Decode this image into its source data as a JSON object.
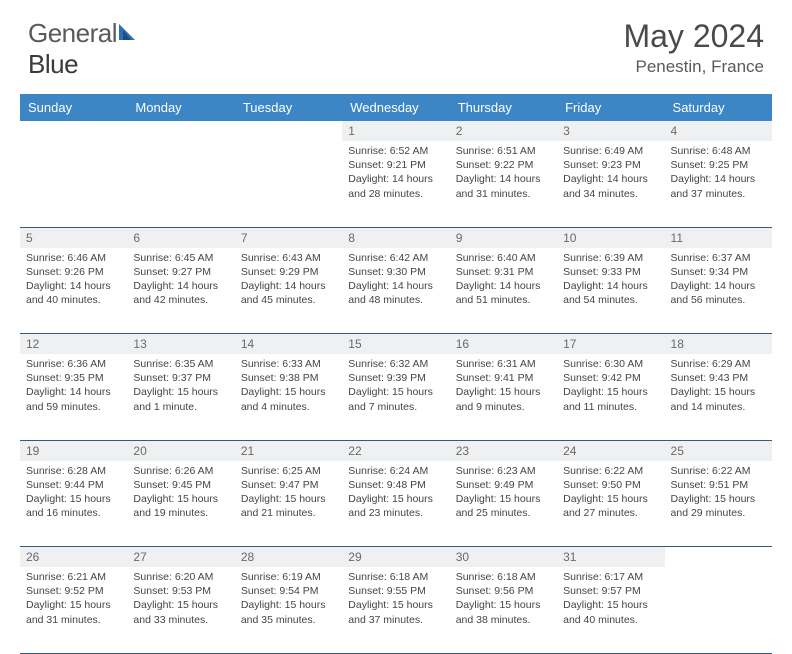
{
  "brand": {
    "part1": "General",
    "part2": "Blue"
  },
  "title": "May 2024",
  "location": "Penestin, France",
  "colors": {
    "header_bg": "#3d86c6",
    "header_text": "#ffffff",
    "daynum_bg": "#eef0f2",
    "daynum_text": "#6a6a6a",
    "row_divider": "#2f5a89",
    "body_text": "#454545",
    "title_text": "#4a4a4a",
    "logo_gray": "#5a5a5a",
    "logo_blue": "#2b6fb0"
  },
  "day_names": [
    "Sunday",
    "Monday",
    "Tuesday",
    "Wednesday",
    "Thursday",
    "Friday",
    "Saturday"
  ],
  "weeks": [
    [
      null,
      null,
      null,
      {
        "n": "1",
        "sr": "6:52 AM",
        "ss": "9:21 PM",
        "dl": "14 hours and 28 minutes."
      },
      {
        "n": "2",
        "sr": "6:51 AM",
        "ss": "9:22 PM",
        "dl": "14 hours and 31 minutes."
      },
      {
        "n": "3",
        "sr": "6:49 AM",
        "ss": "9:23 PM",
        "dl": "14 hours and 34 minutes."
      },
      {
        "n": "4",
        "sr": "6:48 AM",
        "ss": "9:25 PM",
        "dl": "14 hours and 37 minutes."
      }
    ],
    [
      {
        "n": "5",
        "sr": "6:46 AM",
        "ss": "9:26 PM",
        "dl": "14 hours and 40 minutes."
      },
      {
        "n": "6",
        "sr": "6:45 AM",
        "ss": "9:27 PM",
        "dl": "14 hours and 42 minutes."
      },
      {
        "n": "7",
        "sr": "6:43 AM",
        "ss": "9:29 PM",
        "dl": "14 hours and 45 minutes."
      },
      {
        "n": "8",
        "sr": "6:42 AM",
        "ss": "9:30 PM",
        "dl": "14 hours and 48 minutes."
      },
      {
        "n": "9",
        "sr": "6:40 AM",
        "ss": "9:31 PM",
        "dl": "14 hours and 51 minutes."
      },
      {
        "n": "10",
        "sr": "6:39 AM",
        "ss": "9:33 PM",
        "dl": "14 hours and 54 minutes."
      },
      {
        "n": "11",
        "sr": "6:37 AM",
        "ss": "9:34 PM",
        "dl": "14 hours and 56 minutes."
      }
    ],
    [
      {
        "n": "12",
        "sr": "6:36 AM",
        "ss": "9:35 PM",
        "dl": "14 hours and 59 minutes."
      },
      {
        "n": "13",
        "sr": "6:35 AM",
        "ss": "9:37 PM",
        "dl": "15 hours and 1 minute."
      },
      {
        "n": "14",
        "sr": "6:33 AM",
        "ss": "9:38 PM",
        "dl": "15 hours and 4 minutes."
      },
      {
        "n": "15",
        "sr": "6:32 AM",
        "ss": "9:39 PM",
        "dl": "15 hours and 7 minutes."
      },
      {
        "n": "16",
        "sr": "6:31 AM",
        "ss": "9:41 PM",
        "dl": "15 hours and 9 minutes."
      },
      {
        "n": "17",
        "sr": "6:30 AM",
        "ss": "9:42 PM",
        "dl": "15 hours and 11 minutes."
      },
      {
        "n": "18",
        "sr": "6:29 AM",
        "ss": "9:43 PM",
        "dl": "15 hours and 14 minutes."
      }
    ],
    [
      {
        "n": "19",
        "sr": "6:28 AM",
        "ss": "9:44 PM",
        "dl": "15 hours and 16 minutes."
      },
      {
        "n": "20",
        "sr": "6:26 AM",
        "ss": "9:45 PM",
        "dl": "15 hours and 19 minutes."
      },
      {
        "n": "21",
        "sr": "6:25 AM",
        "ss": "9:47 PM",
        "dl": "15 hours and 21 minutes."
      },
      {
        "n": "22",
        "sr": "6:24 AM",
        "ss": "9:48 PM",
        "dl": "15 hours and 23 minutes."
      },
      {
        "n": "23",
        "sr": "6:23 AM",
        "ss": "9:49 PM",
        "dl": "15 hours and 25 minutes."
      },
      {
        "n": "24",
        "sr": "6:22 AM",
        "ss": "9:50 PM",
        "dl": "15 hours and 27 minutes."
      },
      {
        "n": "25",
        "sr": "6:22 AM",
        "ss": "9:51 PM",
        "dl": "15 hours and 29 minutes."
      }
    ],
    [
      {
        "n": "26",
        "sr": "6:21 AM",
        "ss": "9:52 PM",
        "dl": "15 hours and 31 minutes."
      },
      {
        "n": "27",
        "sr": "6:20 AM",
        "ss": "9:53 PM",
        "dl": "15 hours and 33 minutes."
      },
      {
        "n": "28",
        "sr": "6:19 AM",
        "ss": "9:54 PM",
        "dl": "15 hours and 35 minutes."
      },
      {
        "n": "29",
        "sr": "6:18 AM",
        "ss": "9:55 PM",
        "dl": "15 hours and 37 minutes."
      },
      {
        "n": "30",
        "sr": "6:18 AM",
        "ss": "9:56 PM",
        "dl": "15 hours and 38 minutes."
      },
      {
        "n": "31",
        "sr": "6:17 AM",
        "ss": "9:57 PM",
        "dl": "15 hours and 40 minutes."
      },
      null
    ]
  ],
  "labels": {
    "sunrise": "Sunrise:",
    "sunset": "Sunset:",
    "daylight": "Daylight:"
  }
}
